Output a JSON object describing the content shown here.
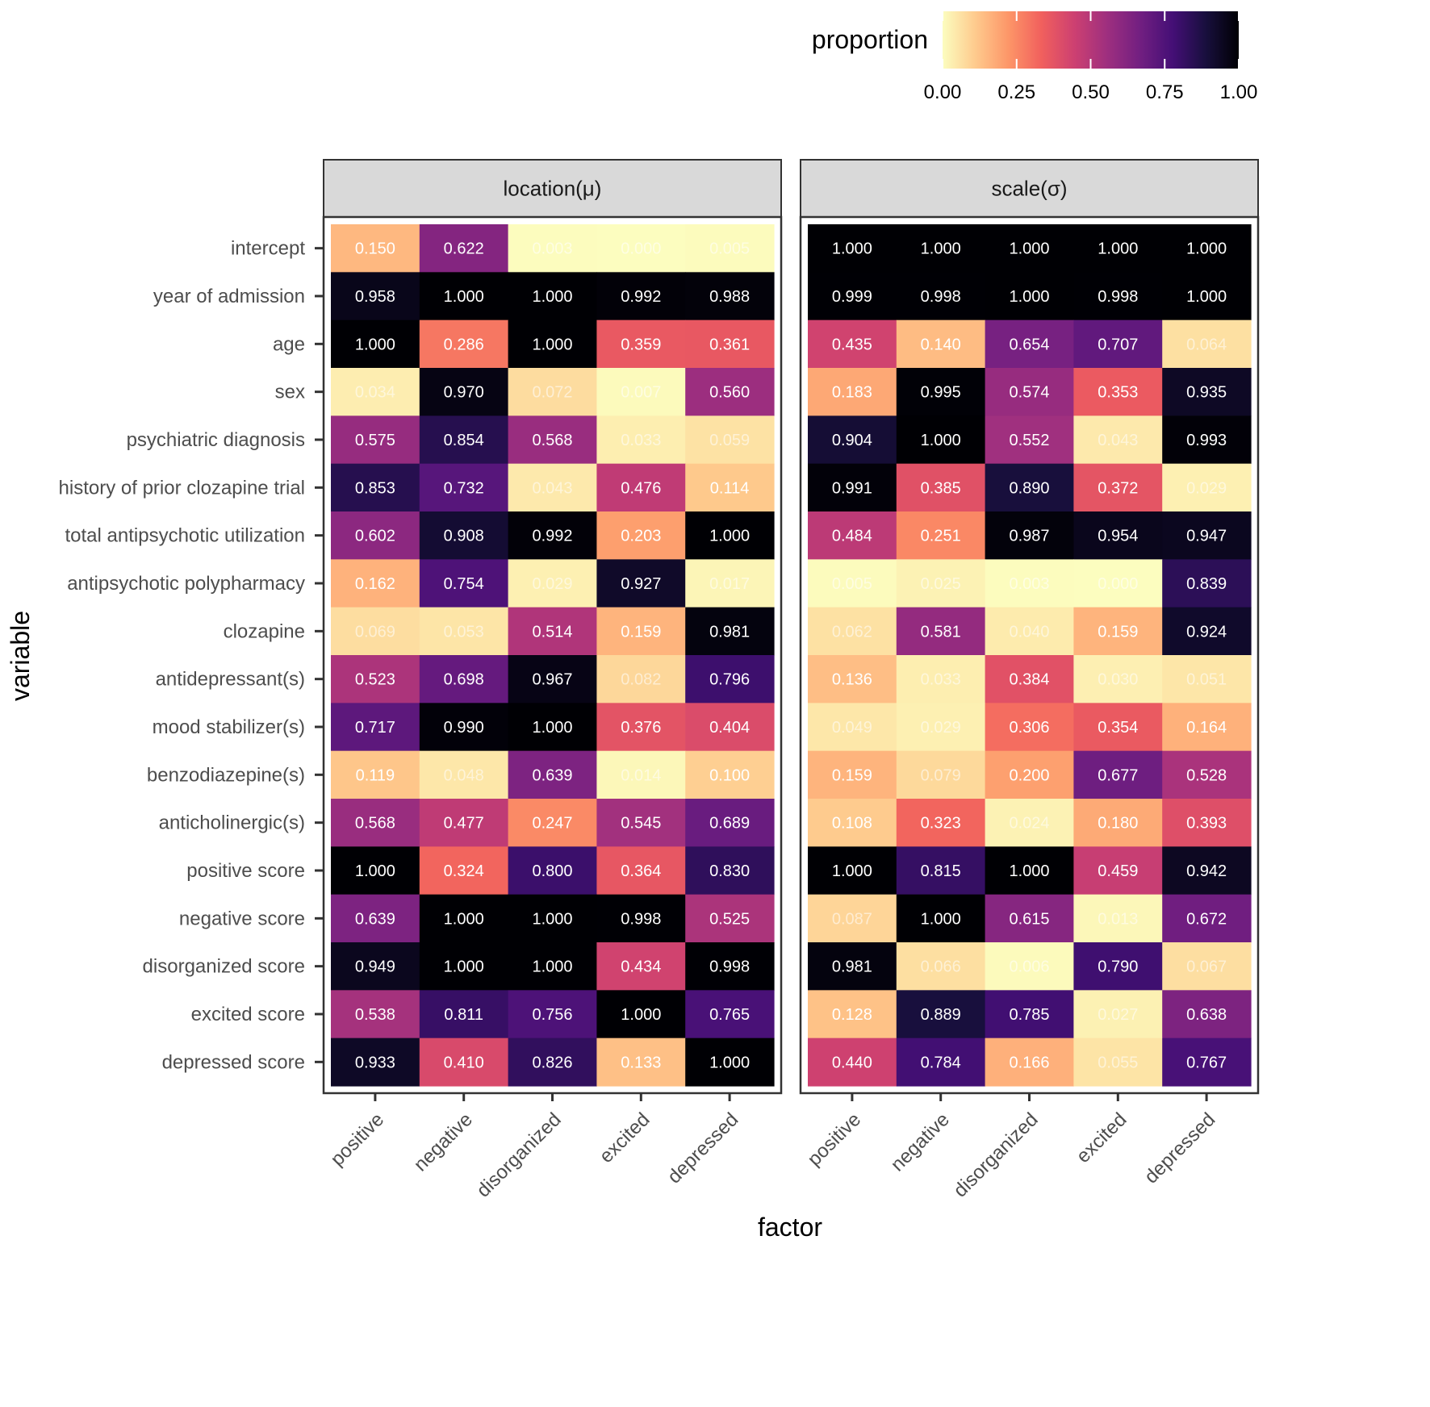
{
  "chart_data": {
    "type": "heatmap",
    "xlabel": "factor",
    "ylabel": "variable",
    "legend": {
      "title": "proportion",
      "ticks": [
        "0.00",
        "0.25",
        "0.50",
        "0.75",
        "1.00"
      ],
      "range": [
        0,
        1
      ],
      "placement": "top-right"
    },
    "factors": [
      "positive",
      "negative",
      "disorganized",
      "excited",
      "depressed"
    ],
    "variables": [
      "intercept",
      "year of admission",
      "age",
      "sex",
      "psychiatric diagnosis",
      "history of prior clozapine trial",
      "total antipsychotic utilization",
      "antipsychotic polypharmacy",
      "clozapine",
      "antidepressant(s)",
      "mood stabilizer(s)",
      "benzodiazepine(s)",
      "anticholinergic(s)",
      "positive score",
      "negative score",
      "disorganized score",
      "excited score",
      "depressed score"
    ],
    "panels": [
      {
        "title": "location(μ)",
        "values": [
          [
            "0.150",
            "0.622",
            "0.003",
            "0.000",
            "0.005"
          ],
          [
            "0.958",
            "1.000",
            "1.000",
            "0.992",
            "0.988"
          ],
          [
            "1.000",
            "0.286",
            "1.000",
            "0.359",
            "0.361"
          ],
          [
            "0.034",
            "0.970",
            "0.072",
            "0.007",
            "0.560"
          ],
          [
            "0.575",
            "0.854",
            "0.568",
            "0.033",
            "0.059"
          ],
          [
            "0.853",
            "0.732",
            "0.043",
            "0.476",
            "0.114"
          ],
          [
            "0.602",
            "0.908",
            "0.992",
            "0.203",
            "1.000"
          ],
          [
            "0.162",
            "0.754",
            "0.029",
            "0.927",
            "0.017"
          ],
          [
            "0.069",
            "0.053",
            "0.514",
            "0.159",
            "0.981"
          ],
          [
            "0.523",
            "0.698",
            "0.967",
            "0.082",
            "0.796"
          ],
          [
            "0.717",
            "0.990",
            "1.000",
            "0.376",
            "0.404"
          ],
          [
            "0.119",
            "0.048",
            "0.639",
            "0.014",
            "0.100"
          ],
          [
            "0.568",
            "0.477",
            "0.247",
            "0.545",
            "0.689"
          ],
          [
            "1.000",
            "0.324",
            "0.800",
            "0.364",
            "0.830"
          ],
          [
            "0.639",
            "1.000",
            "1.000",
            "0.998",
            "0.525"
          ],
          [
            "0.949",
            "1.000",
            "1.000",
            "0.434",
            "0.998"
          ],
          [
            "0.538",
            "0.811",
            "0.756",
            "1.000",
            "0.765"
          ],
          [
            "0.933",
            "0.410",
            "0.826",
            "0.133",
            "1.000"
          ]
        ]
      },
      {
        "title": "scale(σ)",
        "values": [
          [
            "1.000",
            "1.000",
            "1.000",
            "1.000",
            "1.000"
          ],
          [
            "0.999",
            "0.998",
            "1.000",
            "0.998",
            "1.000"
          ],
          [
            "0.435",
            "0.140",
            "0.654",
            "0.707",
            "0.064"
          ],
          [
            "0.183",
            "0.995",
            "0.574",
            "0.353",
            "0.935"
          ],
          [
            "0.904",
            "1.000",
            "0.552",
            "0.043",
            "0.993"
          ],
          [
            "0.991",
            "0.385",
            "0.890",
            "0.372",
            "0.029"
          ],
          [
            "0.484",
            "0.251",
            "0.987",
            "0.954",
            "0.947"
          ],
          [
            "0.005",
            "0.025",
            "0.003",
            "0.000",
            "0.839"
          ],
          [
            "0.062",
            "0.581",
            "0.040",
            "0.159",
            "0.924"
          ],
          [
            "0.136",
            "0.033",
            "0.384",
            "0.030",
            "0.051"
          ],
          [
            "0.049",
            "0.029",
            "0.306",
            "0.354",
            "0.164"
          ],
          [
            "0.159",
            "0.079",
            "0.200",
            "0.677",
            "0.528"
          ],
          [
            "0.108",
            "0.323",
            "0.024",
            "0.180",
            "0.393"
          ],
          [
            "1.000",
            "0.815",
            "1.000",
            "0.459",
            "0.942"
          ],
          [
            "0.087",
            "1.000",
            "0.615",
            "0.013",
            "0.672"
          ],
          [
            "0.981",
            "0.066",
            "0.006",
            "0.790",
            "0.067"
          ],
          [
            "0.128",
            "0.889",
            "0.785",
            "0.027",
            "0.638"
          ],
          [
            "0.440",
            "0.784",
            "0.166",
            "0.055",
            "0.767"
          ]
        ]
      }
    ],
    "colormap": [
      "#fcfdbf",
      "#feca8d",
      "#fd9668",
      "#f1605d",
      "#cd4071",
      "#9e2f7f",
      "#721f81",
      "#440f76",
      "#180f3d",
      "#000004"
    ]
  }
}
